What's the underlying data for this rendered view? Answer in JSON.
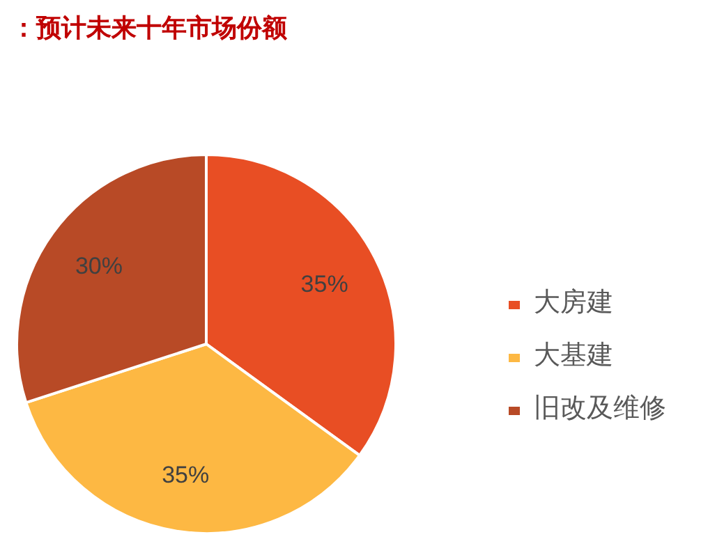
{
  "chart_data": {
    "type": "pie",
    "title": "：预计未来十年市场份额",
    "categories": [
      "大房建",
      "大基建",
      "旧改及维修"
    ],
    "values": [
      35,
      35,
      30
    ],
    "colors": [
      "#e84e24",
      "#fdb843",
      "#b84a26"
    ],
    "value_labels": [
      "35%",
      "35%",
      "30%"
    ],
    "legend": "right"
  }
}
